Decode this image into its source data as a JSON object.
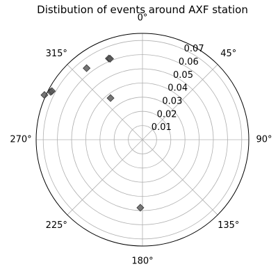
{
  "chart_data": {
    "type": "scatter",
    "projection": "polar",
    "title": "Distibution of events around AXF station",
    "theta_zero_location": "N",
    "theta_direction": "clockwise",
    "theta_ticks": [
      0,
      45,
      90,
      135,
      180,
      225,
      270,
      315
    ],
    "theta_tick_labels": [
      "0°",
      "45°",
      "90°",
      "135°",
      "180°",
      "225°",
      "270°",
      "315°"
    ],
    "r_ticks": [
      0.01,
      0.02,
      0.03,
      0.04,
      0.05,
      0.06,
      0.07
    ],
    "r_tick_labels": [
      "0.01",
      "0.02",
      "0.03",
      "0.04",
      "0.05",
      "0.06",
      "0.07"
    ],
    "rlim": [
      0,
      0.075
    ],
    "rlabel_position_deg": 22.5,
    "grid": true,
    "marker": "diamond",
    "marker_color": "#555555",
    "points": [
      {
        "theta": 337.5,
        "r": 0.062
      },
      {
        "theta": 338.2,
        "r": 0.0615
      },
      {
        "theta": 322.0,
        "r": 0.064
      },
      {
        "theta": 322.5,
        "r": 0.037
      },
      {
        "theta": 297.5,
        "r": 0.073
      },
      {
        "theta": 298.2,
        "r": 0.0725
      },
      {
        "theta": 294.5,
        "r": 0.076
      },
      {
        "theta": 181.8,
        "r": 0.048
      }
    ]
  }
}
